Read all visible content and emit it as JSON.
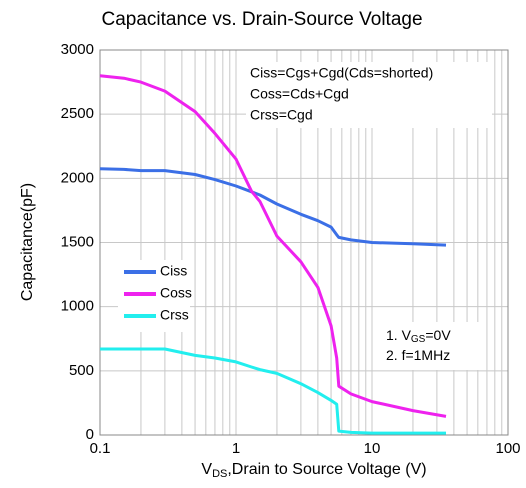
{
  "chart_data": {
    "type": "line",
    "title": "Capacitance vs. Drain-Source Voltage",
    "xlabel": [
      "V",
      "DS",
      ",Drain to Source Voltage (V)"
    ],
    "ylabel": "Capacitance(pF)",
    "x": [
      0.1,
      0.15,
      0.2,
      0.3,
      0.5,
      0.7,
      1,
      1.3,
      1.5,
      2,
      3,
      4,
      5,
      5.5,
      5.7,
      7,
      10,
      20,
      35
    ],
    "series": [
      {
        "name": "Ciss",
        "color": "#3b6fe6",
        "values": [
          2075,
          2070,
          2060,
          2060,
          2030,
          1990,
          1940,
          1895,
          1870,
          1800,
          1720,
          1670,
          1620,
          1560,
          1540,
          1520,
          1500,
          1490,
          1480
        ]
      },
      {
        "name": "Coss",
        "color": "#ee22ee",
        "values": [
          2800,
          2780,
          2750,
          2680,
          2520,
          2350,
          2150,
          1900,
          1820,
          1550,
          1350,
          1150,
          850,
          600,
          380,
          320,
          260,
          190,
          145
        ]
      },
      {
        "name": "Crss",
        "color": "#22eeee",
        "values": [
          670,
          670,
          670,
          670,
          620,
          600,
          570,
          530,
          510,
          480,
          400,
          330,
          270,
          240,
          30,
          20,
          15,
          15,
          15
        ]
      }
    ],
    "xlog": true,
    "xlim": [
      0.1,
      100
    ],
    "xticks": [
      0.1,
      1,
      10,
      100
    ],
    "ylim": [
      0,
      3000
    ],
    "yticks": [
      0,
      500,
      1000,
      1500,
      2000,
      2500,
      3000
    ],
    "grid": true,
    "legend": "center left",
    "annotations": [
      "Ciss=Cgs+Cgd(Cds=shorted)",
      "Coss=Cds+Cgd",
      "Crss=Cgd"
    ],
    "conditions": [
      [
        "1. V",
        "GS",
        "=0V"
      ],
      [
        "2. f=1MHz"
      ]
    ]
  }
}
